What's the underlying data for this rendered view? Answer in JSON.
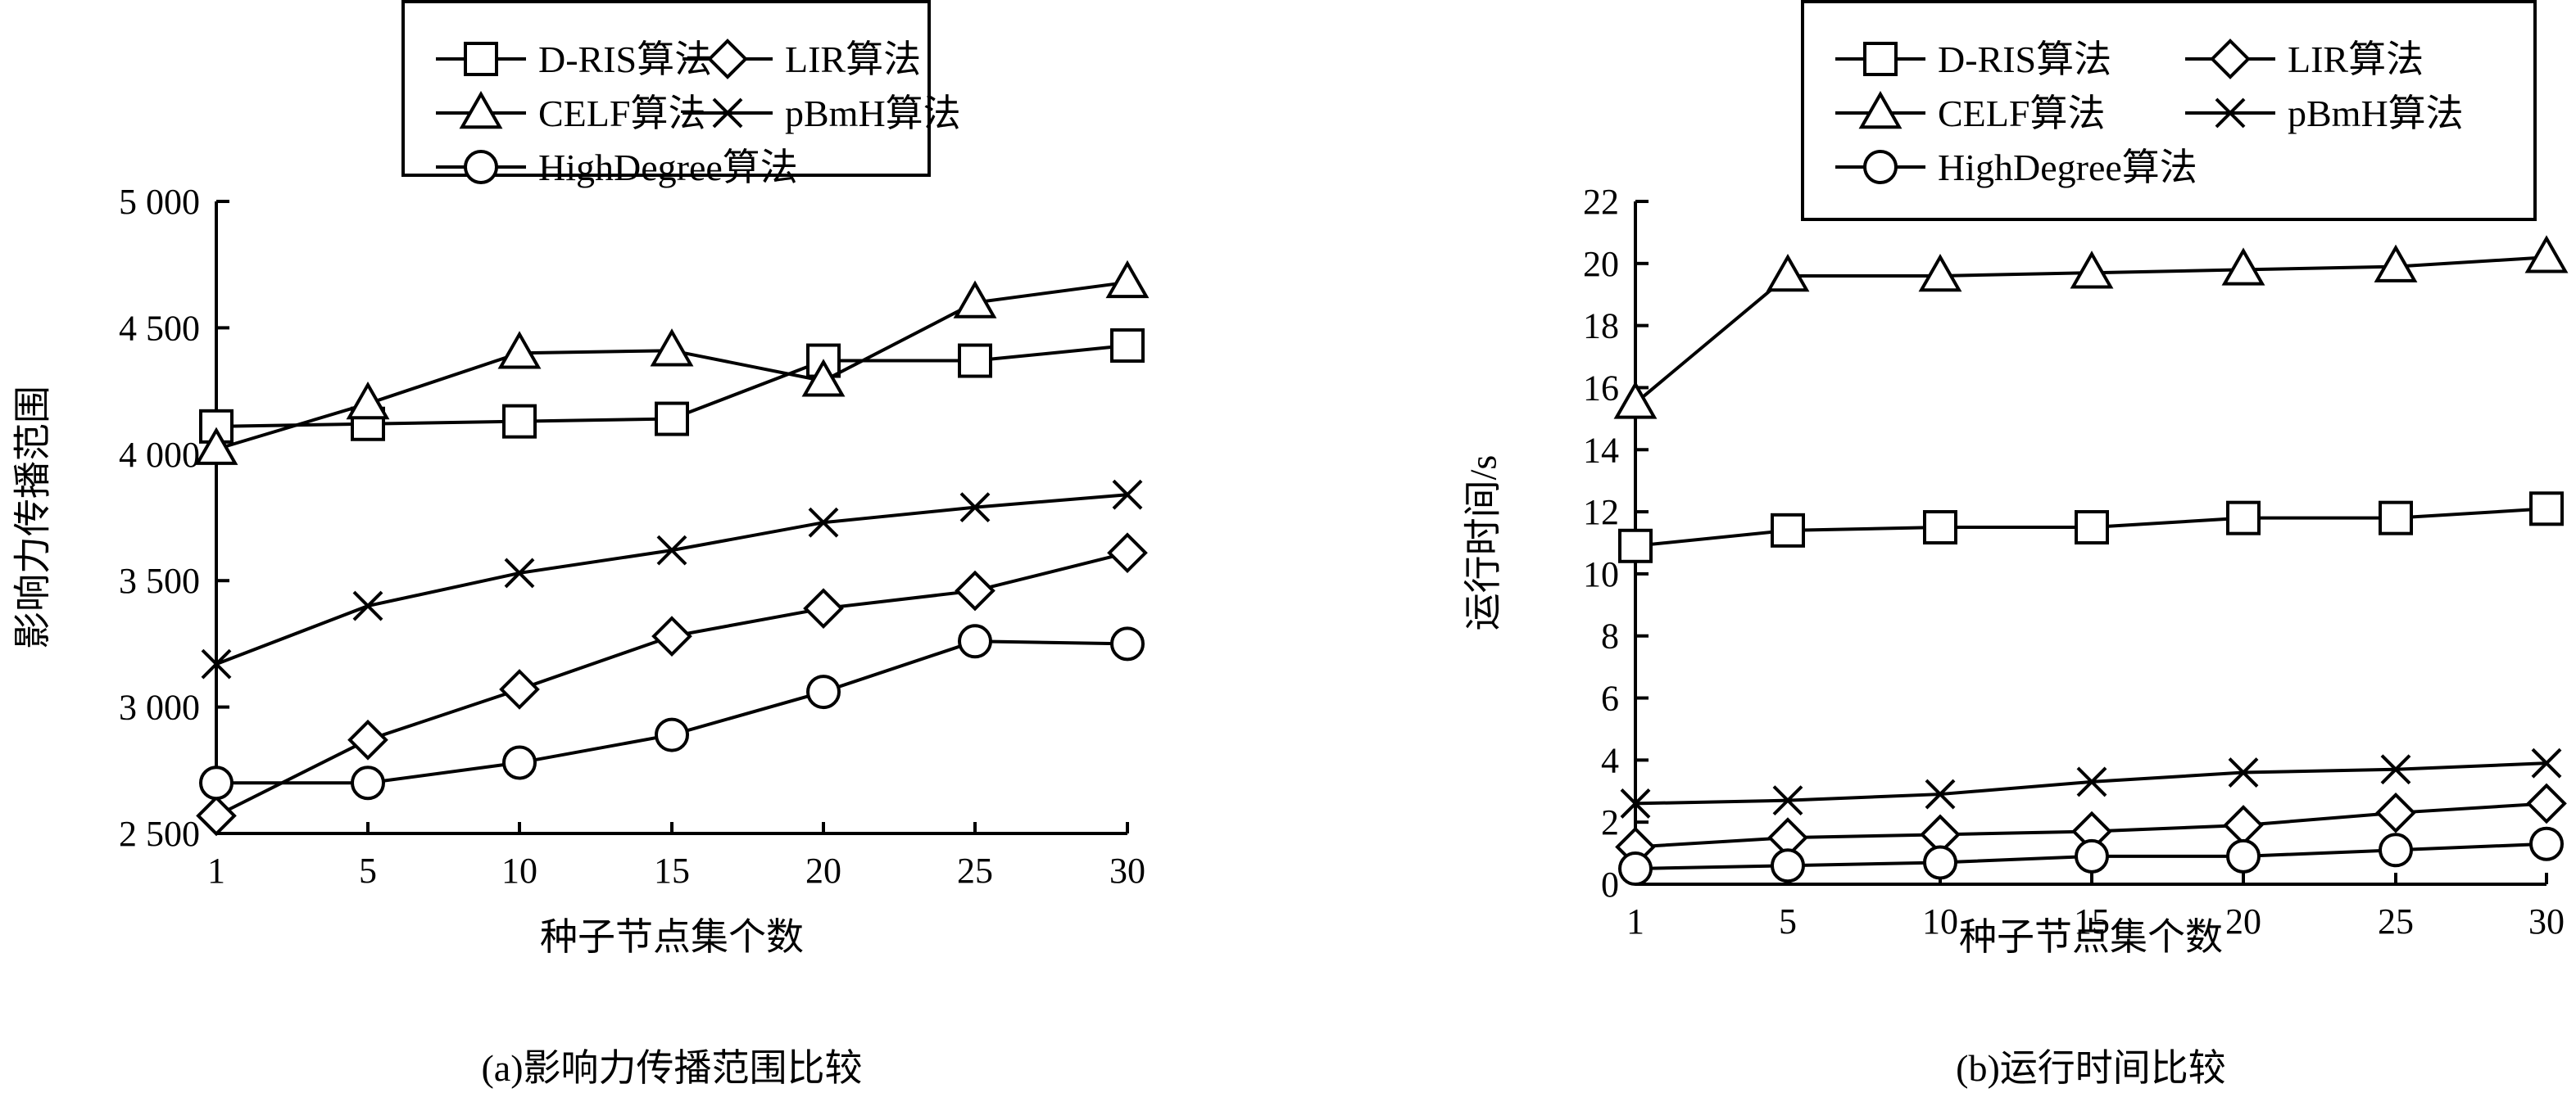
{
  "chart_data": [
    {
      "type": "line",
      "title": "(a)影响力传播范围比较",
      "xlabel": "种子节点集个数",
      "ylabel": "影响力传播范围",
      "categories": [
        "1",
        "5",
        "10",
        "15",
        "20",
        "25",
        "30"
      ],
      "y_ticks": [
        "2 500",
        "3 000",
        "3 500",
        "4 000",
        "4 500",
        "5 000"
      ],
      "ylim": [
        2500,
        5000
      ],
      "legend_position": "top",
      "grid": false,
      "series": [
        {
          "name": "D-RIS算法",
          "marker": "square",
          "values": [
            4110,
            4120,
            4130,
            4140,
            4370,
            4370,
            4430
          ]
        },
        {
          "name": "LIR算法",
          "marker": "diamond",
          "values": [
            2570,
            2870,
            3070,
            3280,
            3390,
            3460,
            3610
          ]
        },
        {
          "name": "CELF算法",
          "marker": "triangle",
          "values": [
            4020,
            4200,
            4400,
            4410,
            4290,
            4600,
            4680
          ]
        },
        {
          "name": "pBmH算法",
          "marker": "cross",
          "values": [
            3170,
            3400,
            3530,
            3620,
            3730,
            3790,
            3840
          ]
        },
        {
          "name": "HighDegree算法",
          "marker": "circle",
          "values": [
            2700,
            2700,
            2780,
            2890,
            3060,
            3260,
            3250
          ]
        }
      ]
    },
    {
      "type": "line",
      "title": "(b)运行时间比较",
      "xlabel": "种子节点集个数",
      "ylabel": "运行时间/s",
      "categories": [
        "1",
        "5",
        "10",
        "15",
        "20",
        "25",
        "30"
      ],
      "y_ticks": [
        "0",
        "2",
        "4",
        "6",
        "8",
        "10",
        "12",
        "14",
        "16",
        "18",
        "20",
        "22"
      ],
      "ylim": [
        0,
        22
      ],
      "legend_position": "top",
      "grid": false,
      "series": [
        {
          "name": "D-RIS算法",
          "marker": "square",
          "values": [
            10.9,
            11.4,
            11.5,
            11.5,
            11.8,
            11.8,
            12.1
          ]
        },
        {
          "name": "LIR算法",
          "marker": "diamond",
          "values": [
            1.2,
            1.5,
            1.6,
            1.7,
            1.9,
            2.3,
            2.6
          ]
        },
        {
          "name": "CELF算法",
          "marker": "triangle",
          "values": [
            15.5,
            19.6,
            19.6,
            19.7,
            19.8,
            19.9,
            20.2
          ]
        },
        {
          "name": "pBmH算法",
          "marker": "cross",
          "values": [
            2.6,
            2.7,
            2.9,
            3.3,
            3.6,
            3.7,
            3.9
          ]
        },
        {
          "name": "HighDegree算法",
          "marker": "circle",
          "values": [
            0.5,
            0.6,
            0.7,
            0.9,
            0.9,
            1.1,
            1.3
          ]
        }
      ]
    }
  ]
}
